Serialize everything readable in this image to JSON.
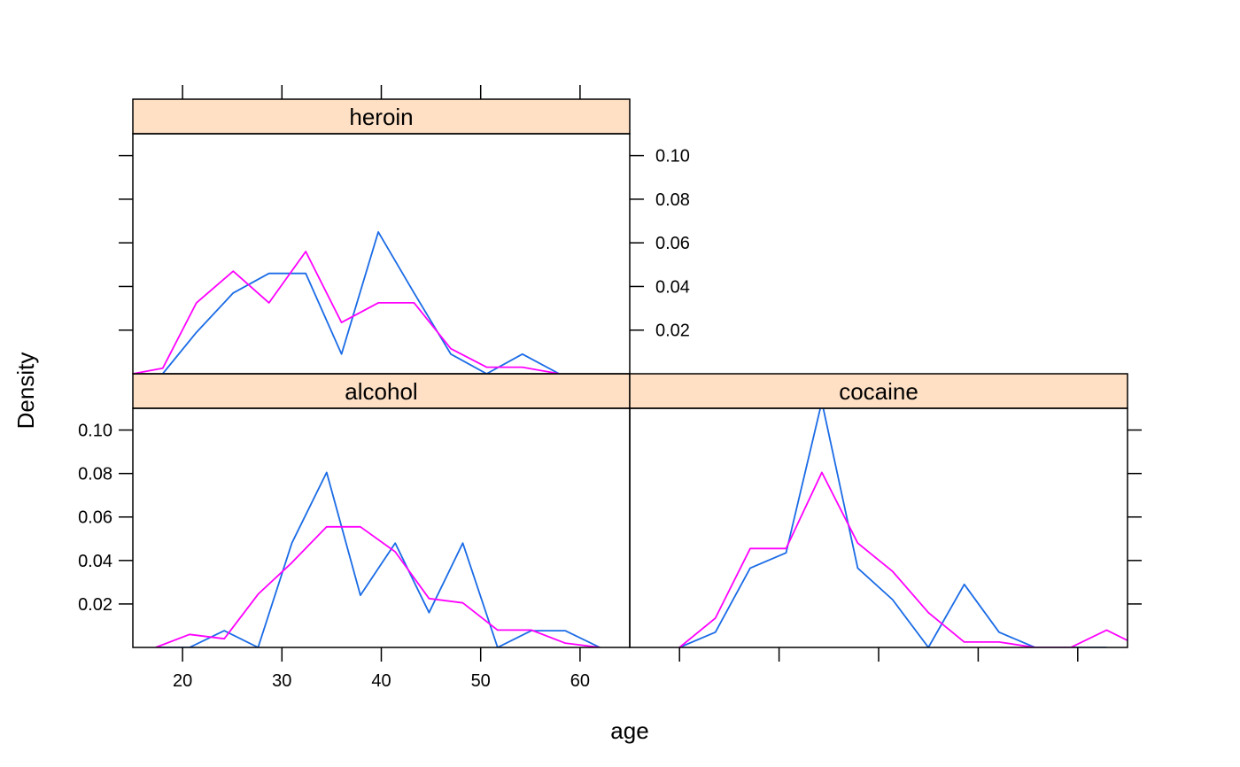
{
  "chart_data": {
    "type": "line",
    "layout": "lattice 2x2, panels: alcohol (bottom-left), cocaine (bottom-right), heroin (top-left)",
    "xlabel": "age",
    "ylabel": "Density",
    "xlim": [
      15,
      65
    ],
    "ylim": [
      0,
      0.11
    ],
    "x_ticks": [
      20,
      30,
      40,
      50,
      60
    ],
    "y_ticks": [
      0.02,
      0.04,
      0.06,
      0.08,
      0.1
    ],
    "x_tick_labels": [
      "20",
      "30",
      "40",
      "50",
      "60"
    ],
    "y_tick_labels": [
      "0.02",
      "0.04",
      "0.06",
      "0.08",
      "0.10"
    ],
    "grid": false,
    "legend": "none",
    "strip_color": "#FFE0C4",
    "series_colors": [
      "#1A6BE6",
      "#FF00FF"
    ],
    "panels": [
      {
        "name": "alcohol",
        "series": [
          {
            "color": "#1A6BE6",
            "x": [
              17.3,
              20.7,
              24.2,
              27.6,
              31.0,
              34.5,
              37.9,
              41.4,
              44.8,
              48.2,
              51.7,
              55.1,
              58.5,
              62.0
            ],
            "y": [
              0,
              0,
              0.0077,
              0,
              0.048,
              0.0805,
              0.024,
              0.048,
              0.016,
              0.048,
              0,
              0.0077,
              0.0077,
              0
            ]
          },
          {
            "color": "#FF00FF",
            "x": [
              17.3,
              20.7,
              24.2,
              27.6,
              31.0,
              34.5,
              37.9,
              41.4,
              44.8,
              48.2,
              51.7,
              55.1,
              58.5,
              62.0
            ],
            "y": [
              0,
              0.006,
              0.004,
              0.0245,
              0.039,
              0.0555,
              0.0555,
              0.044,
              0.0225,
              0.0205,
              0.008,
              0.008,
              0.002,
              0
            ]
          }
        ]
      },
      {
        "name": "cocaine",
        "series": [
          {
            "color": "#1A6BE6",
            "x": [
              20,
              23.6,
              27.1,
              30.7,
              34.3,
              37.9,
              41.4,
              45.0,
              48.6,
              52.1,
              55.7,
              59.3,
              62.9
            ],
            "y": [
              0,
              0.007,
              0.0365,
              0.0435,
              0.113,
              0.0365,
              0.022,
              0,
              0.029,
              0.007,
              0,
              0,
              0
            ]
          },
          {
            "color": "#FF00FF",
            "x": [
              20,
              23.6,
              27.1,
              30.7,
              34.3,
              37.9,
              41.4,
              45.0,
              48.6,
              52.1,
              55.7,
              59.3,
              62.9,
              66.4
            ],
            "y": [
              0,
              0.0135,
              0.0455,
              0.0455,
              0.0805,
              0.048,
              0.035,
              0.016,
              0.0025,
              0.0025,
              0,
              0,
              0.008,
              0
            ]
          }
        ]
      },
      {
        "name": "heroin",
        "series": [
          {
            "color": "#1A6BE6",
            "x": [
              18.0,
              21.4,
              25.1,
              28.7,
              32.4,
              36.0,
              39.7,
              43.3,
              47.0,
              50.6,
              54.2,
              57.9
            ],
            "y": [
              0,
              0.019,
              0.037,
              0.046,
              0.046,
              0.009,
              0.065,
              0.037,
              0.009,
              0,
              0.009,
              0
            ]
          },
          {
            "color": "#FF00FF",
            "x": [
              15,
              18.0,
              21.4,
              25.1,
              28.7,
              32.4,
              36.0,
              39.7,
              43.3,
              47.0,
              50.6,
              54.2,
              57.9
            ],
            "y": [
              0,
              0.0025,
              0.0325,
              0.047,
              0.0325,
              0.056,
              0.0235,
              0.0325,
              0.0325,
              0.0115,
              0.003,
              0.003,
              0
            ]
          }
        ]
      }
    ]
  }
}
